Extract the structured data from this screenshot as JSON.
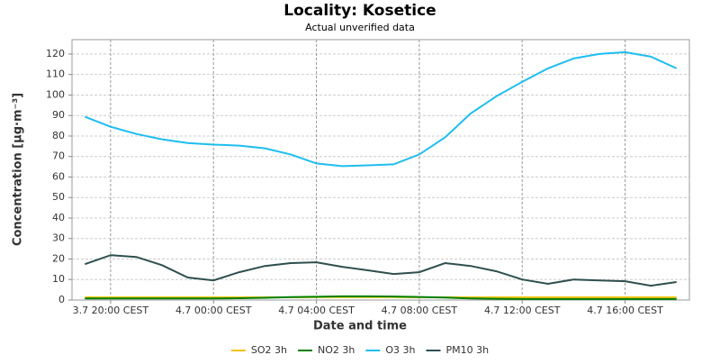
{
  "chart_data": {
    "type": "line",
    "title": "Locality: Kosetice",
    "subtitle": "Actual unverified data",
    "xlabel": "Date and time",
    "ylabel": "Concentration [µg·m⁻³]",
    "categories": [
      null,
      "3.7 20:00 CEST",
      null,
      null,
      null,
      "4.7 00:00 CEST",
      null,
      null,
      null,
      "4.7 04:00 CEST",
      null,
      null,
      null,
      "4.7 08:00 CEST",
      null,
      null,
      null,
      "4.7 12:00 CEST",
      null,
      null,
      null,
      "4.7 16:00 CEST",
      null,
      null
    ],
    "series": [
      {
        "name": "SO2 3h",
        "color": "#f5c400",
        "values": [
          1.3,
          1.3,
          1.3,
          1.3,
          1.3,
          1.3,
          1.3,
          1.3,
          1.3,
          1.4,
          1.4,
          1.4,
          1.4,
          1.3,
          1.3,
          1.3,
          1.3,
          1.3,
          1.3,
          1.3,
          1.3,
          1.3,
          1.3,
          1.3
        ]
      },
      {
        "name": "NO2 3h",
        "color": "#008000",
        "values": [
          0.8,
          0.8,
          0.8,
          0.8,
          0.8,
          0.8,
          0.9,
          1.1,
          1.4,
          1.6,
          1.8,
          1.8,
          1.7,
          1.5,
          1.2,
          0.8,
          0.6,
          0.5,
          0.5,
          0.5,
          0.5,
          0.5,
          0.5,
          0.5
        ]
      },
      {
        "name": "O3 3h",
        "color": "#1ebdf0",
        "values": [
          89.4,
          84.5,
          81,
          78.4,
          76.6,
          75.8,
          75.3,
          74,
          71,
          66.6,
          65.3,
          65.7,
          66.2,
          71,
          79.3,
          91,
          99.4,
          106.4,
          113,
          117.8,
          120,
          120.9,
          118.7,
          113
        ]
      },
      {
        "name": "PM10 3h",
        "color": "#2f4f4f",
        "values": [
          17.5,
          21.9,
          21,
          17,
          11,
          9.6,
          13.6,
          16.6,
          18,
          18.4,
          16.2,
          14.5,
          12.7,
          13.6,
          18,
          16.6,
          14,
          10,
          7.9,
          10,
          9.6,
          9.2,
          7,
          8.8
        ]
      }
    ],
    "ylim": [
      0,
      127
    ],
    "yticks": [
      0,
      10,
      20,
      30,
      40,
      50,
      60,
      70,
      80,
      90,
      100,
      110,
      120
    ],
    "grid": true
  }
}
